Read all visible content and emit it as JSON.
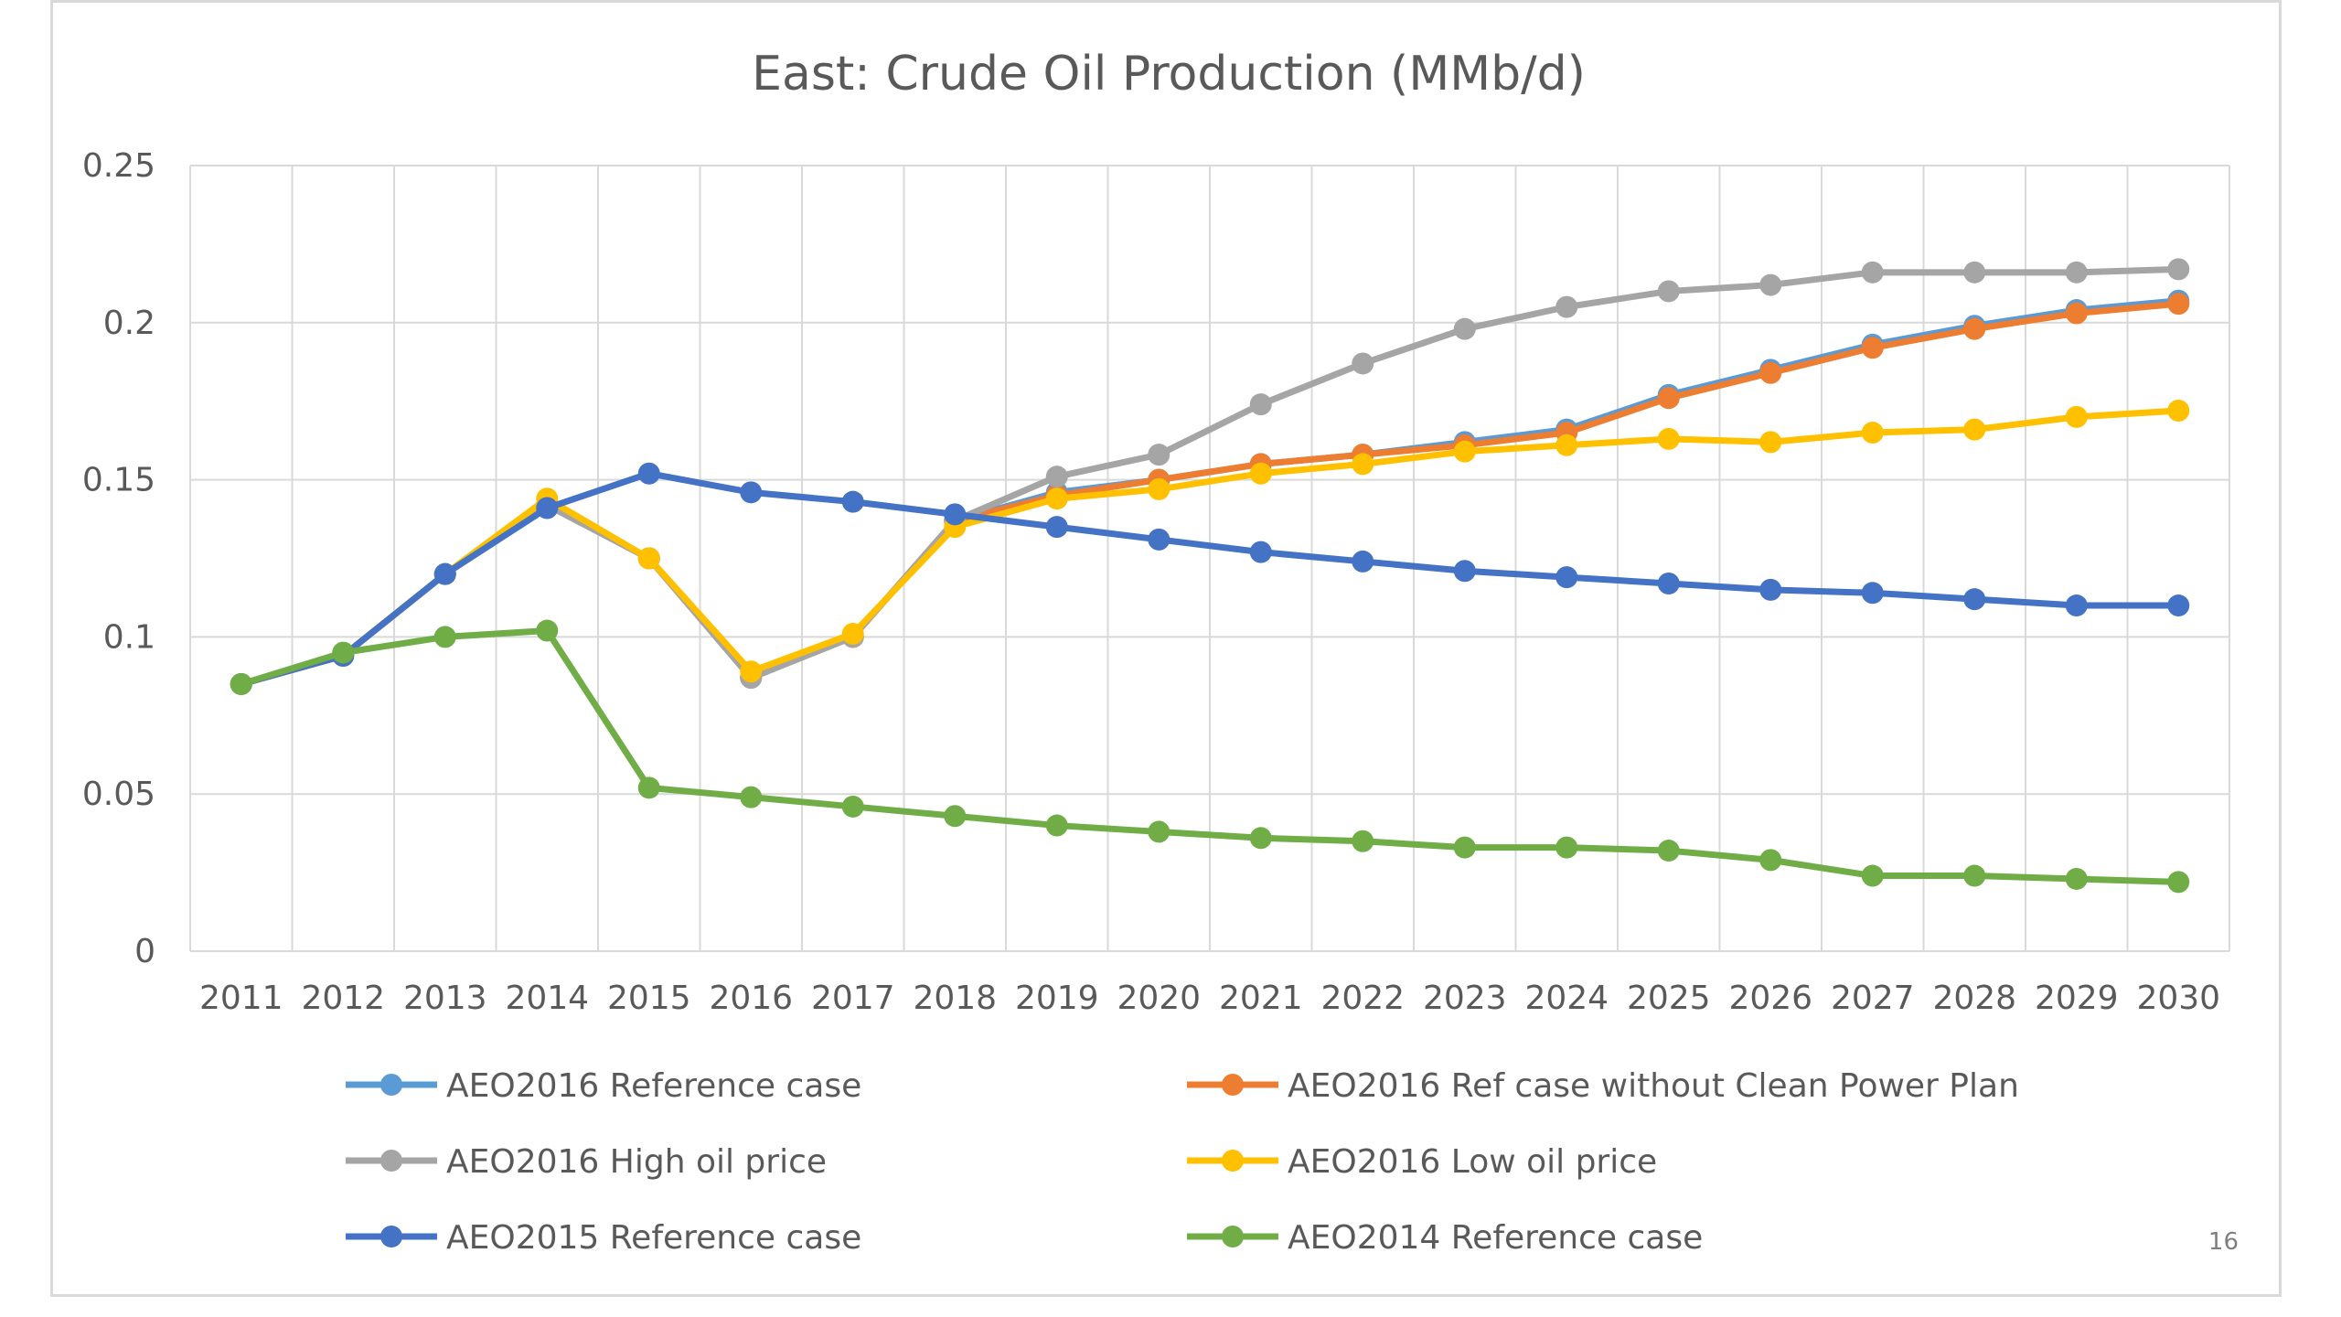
{
  "page": {
    "page_number": "16"
  },
  "chart_data": {
    "type": "line",
    "title": "East: Crude Oil Production (MMb/d)",
    "xlabel": "",
    "ylabel": "",
    "x": [
      "2011",
      "2012",
      "2013",
      "2014",
      "2015",
      "2016",
      "2017",
      "2018",
      "2019",
      "2020",
      "2021",
      "2022",
      "2023",
      "2024",
      "2025",
      "2026",
      "2027",
      "2028",
      "2029",
      "2030"
    ],
    "ylim": [
      0,
      0.25
    ],
    "yticks": [
      0,
      0.05,
      0.1,
      0.15,
      0.2,
      0.25
    ],
    "ytick_labels": [
      "0",
      "0.05",
      "0.1",
      "0.15",
      "0.2",
      "0.25"
    ],
    "grid": true,
    "legend_position": "bottom",
    "series": [
      {
        "name": "AEO2016 Reference case",
        "color": "#5b9bd5",
        "values": [
          0.085,
          0.094,
          0.12,
          0.142,
          0.125,
          0.087,
          0.1,
          0.137,
          0.146,
          0.15,
          0.155,
          0.158,
          0.162,
          0.166,
          0.177,
          0.185,
          0.193,
          0.199,
          0.204,
          0.207
        ]
      },
      {
        "name": "AEO2016 Ref case without Clean Power Plan",
        "color": "#ed7d31",
        "values": [
          0.085,
          0.094,
          0.12,
          0.142,
          0.125,
          0.087,
          0.1,
          0.137,
          0.145,
          0.15,
          0.155,
          0.158,
          0.161,
          0.165,
          0.176,
          0.184,
          0.192,
          0.198,
          0.203,
          0.206
        ]
      },
      {
        "name": "AEO2016 High oil price",
        "color": "#a5a5a5",
        "values": [
          0.085,
          0.094,
          0.12,
          0.142,
          0.125,
          0.087,
          0.1,
          0.137,
          0.151,
          0.158,
          0.174,
          0.187,
          0.198,
          0.205,
          0.21,
          0.212,
          0.216,
          0.216,
          0.216,
          0.217
        ]
      },
      {
        "name": "AEO2016 Low oil price",
        "color": "#ffc000",
        "values": [
          0.085,
          0.094,
          0.12,
          0.144,
          0.125,
          0.089,
          0.101,
          0.135,
          0.144,
          0.147,
          0.152,
          0.155,
          0.159,
          0.161,
          0.163,
          0.162,
          0.165,
          0.166,
          0.17,
          0.172
        ]
      },
      {
        "name": "AEO2015 Reference case",
        "color": "#4472c4",
        "values": [
          0.085,
          0.094,
          0.12,
          0.141,
          0.152,
          0.146,
          0.143,
          0.139,
          0.135,
          0.131,
          0.127,
          0.124,
          0.121,
          0.119,
          0.117,
          0.115,
          0.114,
          0.112,
          0.11,
          0.11
        ]
      },
      {
        "name": "AEO2014 Reference case",
        "color": "#70ad47",
        "values": [
          0.085,
          0.095,
          0.1,
          0.102,
          0.052,
          0.049,
          0.046,
          0.043,
          0.04,
          0.038,
          0.036,
          0.035,
          0.033,
          0.033,
          0.032,
          0.029,
          0.024,
          0.024,
          0.023,
          0.022
        ]
      }
    ]
  }
}
